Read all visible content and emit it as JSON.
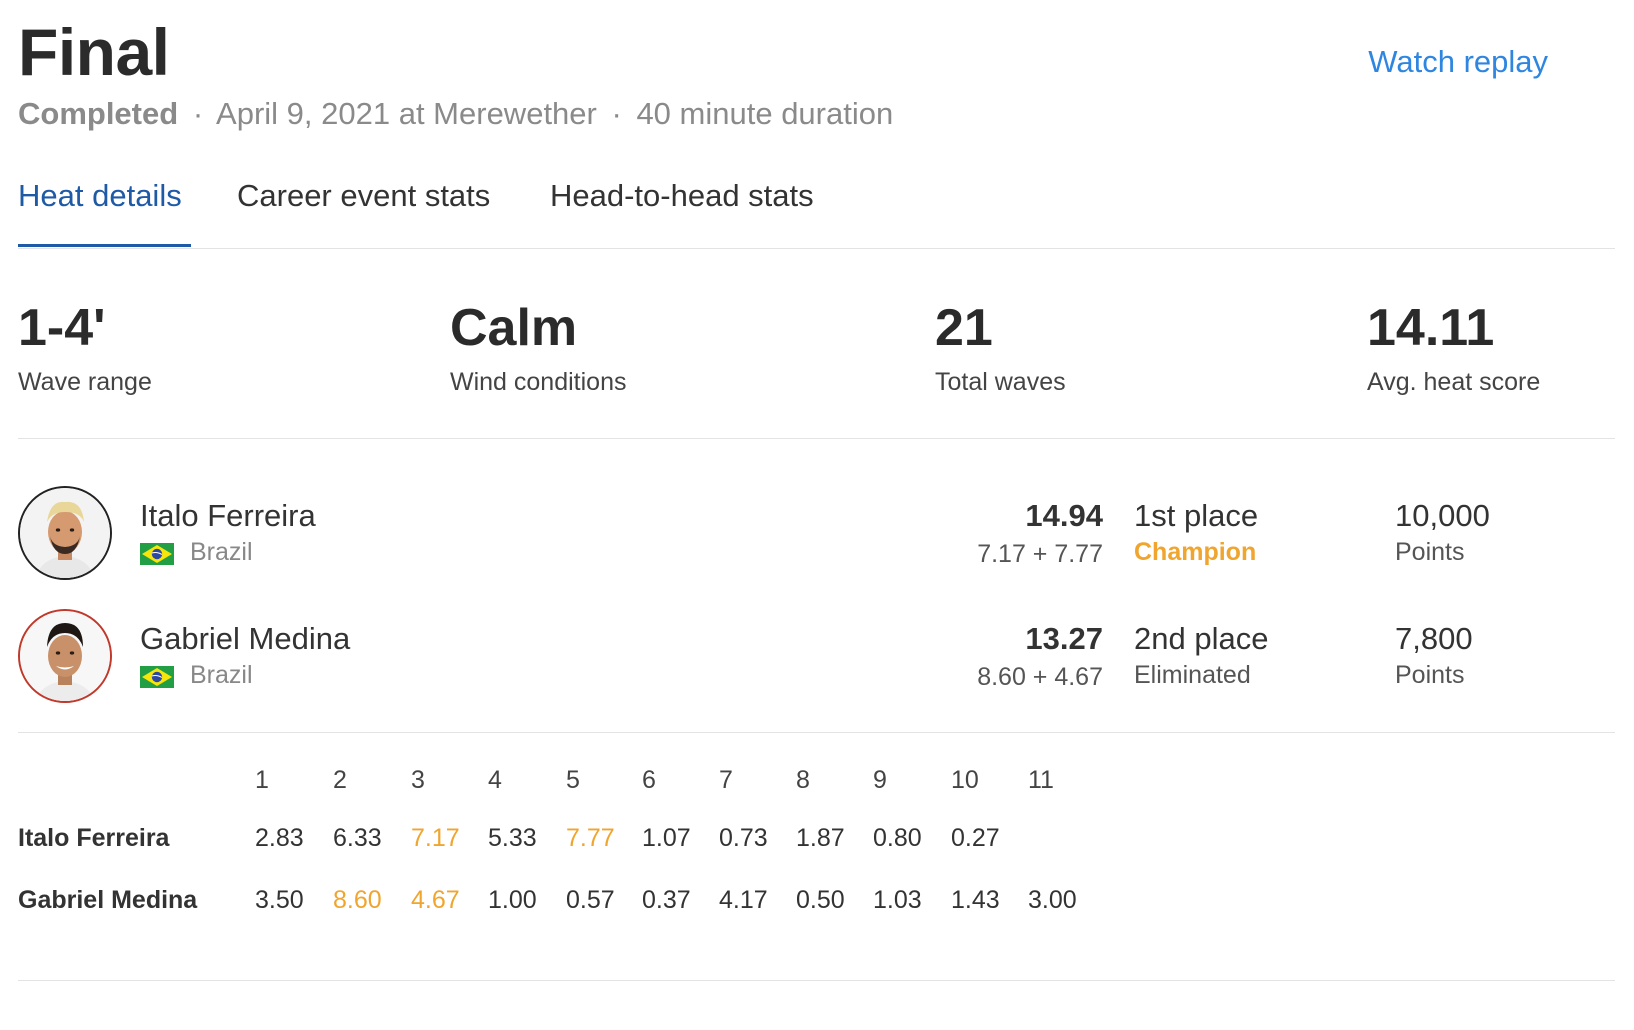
{
  "header": {
    "title": "Final",
    "watch_replay": "Watch replay",
    "status": "Completed",
    "separator": "·",
    "date_location": "April 9, 2021 at Merewether",
    "duration": "40 minute duration"
  },
  "tabs": [
    {
      "label": "Heat details",
      "active": true
    },
    {
      "label": "Career event stats",
      "active": false
    },
    {
      "label": "Head-to-head stats",
      "active": false
    }
  ],
  "stats": [
    {
      "value": "1-4'",
      "label": "Wave range"
    },
    {
      "value": "Calm",
      "label": "Wind conditions"
    },
    {
      "value": "21",
      "label": "Total waves"
    },
    {
      "value": "14.11",
      "label": "Avg. heat score"
    }
  ],
  "competitors": [
    {
      "name": "Italo Ferreira",
      "country": "Brazil",
      "score": "14.94",
      "counting_waves": "7.17 + 7.77",
      "place": "1st place",
      "result": "Champion",
      "points": "10,000",
      "points_label": "Points"
    },
    {
      "name": "Gabriel Medina",
      "country": "Brazil",
      "score": "13.27",
      "counting_waves": "8.60 + 4.67",
      "place": "2nd place",
      "result": "Eliminated",
      "points": "7,800",
      "points_label": "Points"
    }
  ],
  "wave_table": {
    "wave_numbers": [
      "1",
      "2",
      "3",
      "4",
      "5",
      "6",
      "7",
      "8",
      "9",
      "10",
      "11"
    ],
    "rows": [
      {
        "name": "Italo Ferreira",
        "scores": [
          "2.83",
          "6.33",
          "7.17",
          "5.33",
          "7.77",
          "1.07",
          "0.73",
          "1.87",
          "0.80",
          "0.27"
        ],
        "best_indices": [
          2,
          4
        ]
      },
      {
        "name": "Gabriel Medina",
        "scores": [
          "3.50",
          "8.60",
          "4.67",
          "1.00",
          "0.57",
          "0.37",
          "4.17",
          "0.50",
          "1.03",
          "1.43",
          "3.00"
        ],
        "best_indices": [
          1,
          2
        ]
      }
    ]
  },
  "colors": {
    "accent_blue": "#2f86e0",
    "tab_active": "#1f5aa6",
    "highlight_orange": "#f0a52e"
  }
}
